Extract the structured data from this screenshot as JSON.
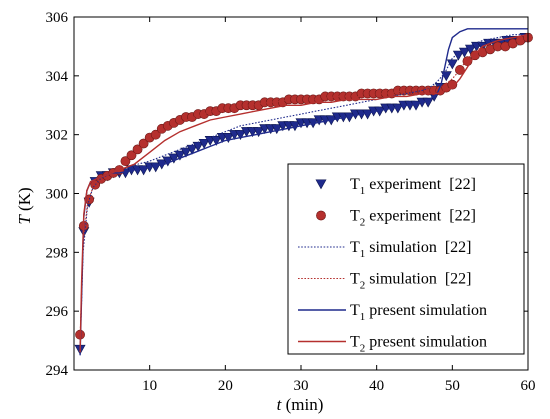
{
  "chart_data": {
    "type": "line",
    "xlabel": {
      "main": "t",
      "unit": " (min)"
    },
    "ylabel": {
      "main": "T",
      "unit": " (K)"
    },
    "xlim": [
      0,
      60
    ],
    "ylim": [
      294,
      306
    ],
    "xticks": [
      "10",
      "20",
      "30",
      "40",
      "50",
      "60"
    ],
    "yticks": [
      "294",
      "296",
      "298",
      "300",
      "302",
      "304",
      "306"
    ],
    "legend_position": "bottom-right",
    "series": [
      {
        "name": "experiment",
        "sub": "1",
        "ref": "[22]",
        "kind": "marker-triangle",
        "color": "#1f2a8c",
        "x": [
          0.8,
          1.3,
          2.0,
          2.8,
          3.6,
          4.4,
          5.2,
          6.0,
          6.8,
          7.6,
          8.4,
          9.2,
          10.0,
          10.8,
          11.6,
          12.4,
          13.2,
          14.0,
          14.8,
          15.6,
          16.4,
          17.2,
          18.0,
          18.8,
          19.6,
          20.4,
          21.2,
          22.0,
          22.8,
          23.6,
          24.4,
          25.2,
          26.0,
          26.8,
          27.6,
          28.4,
          29.2,
          30.0,
          30.8,
          31.6,
          32.4,
          33.2,
          34.0,
          34.8,
          35.6,
          36.4,
          37.2,
          38.0,
          38.8,
          39.6,
          40.4,
          41.2,
          42.0,
          42.8,
          43.6,
          44.4,
          45.2,
          46.0,
          46.8,
          47.6,
          48.4,
          49.2,
          50.0,
          50.8,
          51.6,
          52.4,
          53.2,
          54.0,
          54.8,
          55.6,
          56.4,
          57.2,
          58.0,
          58.8,
          59.6
        ],
        "y": [
          294.7,
          298.7,
          299.7,
          300.4,
          300.6,
          300.6,
          300.7,
          300.7,
          300.7,
          300.8,
          300.8,
          300.8,
          300.9,
          300.9,
          301.0,
          301.1,
          301.2,
          301.3,
          301.4,
          301.5,
          301.6,
          301.7,
          301.8,
          301.8,
          301.9,
          301.9,
          302.0,
          302.0,
          302.1,
          302.1,
          302.1,
          302.2,
          302.2,
          302.2,
          302.3,
          302.3,
          302.3,
          302.4,
          302.4,
          302.4,
          302.5,
          302.5,
          302.5,
          302.6,
          302.6,
          302.6,
          302.7,
          302.7,
          302.7,
          302.8,
          302.8,
          302.9,
          302.9,
          302.9,
          303.0,
          303.0,
          303.0,
          303.1,
          303.1,
          303.3,
          303.6,
          304.0,
          304.4,
          304.7,
          304.8,
          304.9,
          305.0,
          305.0,
          305.1,
          305.1,
          305.1,
          305.2,
          305.2,
          305.2,
          305.3
        ]
      },
      {
        "name": "experiment",
        "sub": "2",
        "ref": "[22]",
        "kind": "marker-circle",
        "color": "#b5302e",
        "x": [
          0.8,
          1.3,
          2.0,
          2.8,
          3.6,
          4.4,
          5.2,
          6.0,
          6.8,
          7.6,
          8.4,
          9.2,
          10.0,
          10.8,
          11.6,
          12.4,
          13.2,
          14.0,
          14.8,
          15.6,
          16.4,
          17.2,
          18.0,
          18.8,
          19.6,
          20.4,
          21.2,
          22.0,
          22.8,
          23.6,
          24.4,
          25.2,
          26.0,
          26.8,
          27.6,
          28.4,
          29.2,
          30.0,
          30.8,
          31.6,
          32.4,
          33.2,
          34.0,
          34.8,
          35.6,
          36.4,
          37.2,
          38.0,
          38.8,
          39.6,
          40.4,
          41.2,
          42.0,
          42.8,
          43.6,
          44.4,
          45.2,
          46.0,
          46.8,
          47.6,
          48.4,
          49.2,
          50.0,
          51.0,
          52.0,
          53.0,
          54.0,
          55.0,
          56.0,
          57.0,
          58.0,
          59.0,
          60.0
        ],
        "y": [
          295.2,
          298.9,
          299.8,
          300.3,
          300.5,
          300.6,
          300.7,
          300.8,
          301.1,
          301.3,
          301.5,
          301.7,
          301.9,
          302.0,
          302.2,
          302.3,
          302.4,
          302.5,
          302.6,
          302.6,
          302.7,
          302.7,
          302.8,
          302.8,
          302.9,
          302.9,
          302.9,
          303.0,
          303.0,
          303.0,
          303.0,
          303.1,
          303.1,
          303.1,
          303.1,
          303.2,
          303.2,
          303.2,
          303.2,
          303.2,
          303.2,
          303.3,
          303.3,
          303.3,
          303.3,
          303.3,
          303.3,
          303.4,
          303.4,
          303.4,
          303.4,
          303.4,
          303.4,
          303.5,
          303.5,
          303.5,
          303.5,
          303.5,
          303.5,
          303.5,
          303.5,
          303.6,
          303.7,
          304.2,
          304.5,
          304.7,
          304.8,
          304.9,
          305.0,
          305.0,
          305.1,
          305.2,
          305.3
        ]
      },
      {
        "name": "simulation",
        "sub": "1",
        "ref": "[22]",
        "kind": "line-dotted",
        "color": "#1f2a8c",
        "x": [
          0.8,
          1.2,
          1.8,
          2.5,
          3.5,
          5,
          7,
          10,
          12,
          14,
          16,
          18,
          20,
          22,
          24,
          26,
          28,
          30,
          32,
          34,
          36,
          38,
          40,
          42,
          44,
          46,
          47,
          48,
          49,
          50,
          52,
          54,
          56,
          58,
          60
        ],
        "y": [
          294.7,
          298.0,
          299.6,
          300.2,
          300.5,
          300.7,
          300.9,
          301.1,
          301.3,
          301.5,
          301.7,
          301.9,
          302.1,
          302.3,
          302.4,
          302.5,
          302.6,
          302.7,
          302.8,
          302.9,
          303.0,
          303.1,
          303.2,
          303.3,
          303.4,
          303.5,
          303.6,
          303.8,
          304.1,
          304.6,
          305.0,
          305.2,
          305.3,
          305.4,
          305.4
        ]
      },
      {
        "name": "simulation",
        "sub": "2",
        "ref": "[22]",
        "kind": "line-dotted",
        "color": "#b5302e",
        "x": [
          0.8,
          1.2,
          1.8,
          2.5,
          3.5,
          5,
          7,
          9,
          11,
          13,
          15,
          17,
          20,
          23,
          26,
          29,
          32,
          35,
          38,
          41,
          44,
          47,
          48,
          49,
          50,
          51,
          52,
          54,
          56,
          58,
          60
        ],
        "y": [
          295.1,
          298.3,
          299.7,
          300.2,
          300.5,
          300.7,
          301.1,
          301.6,
          302.0,
          302.3,
          302.5,
          302.7,
          302.9,
          303.0,
          303.1,
          303.2,
          303.2,
          303.3,
          303.3,
          303.4,
          303.5,
          303.6,
          303.6,
          303.7,
          303.9,
          304.2,
          304.6,
          305.0,
          305.2,
          305.3,
          305.4
        ]
      },
      {
        "name": "present simulation",
        "sub": "1",
        "ref": "",
        "kind": "line-solid",
        "color": "#1f2a8c",
        "x": [
          0.8,
          1.0,
          1.3,
          1.7,
          2.2,
          3,
          4,
          5,
          6,
          8,
          10,
          12,
          14,
          16,
          18,
          20,
          22,
          24,
          26,
          28,
          30,
          32,
          34,
          36,
          38,
          40,
          42,
          44,
          46,
          47,
          48,
          48.5,
          49,
          49.5,
          50,
          51,
          52,
          54,
          56,
          58,
          60
        ],
        "y": [
          294.5,
          296.5,
          299.2,
          300.1,
          300.4,
          300.5,
          300.6,
          300.7,
          300.7,
          300.8,
          300.9,
          301.0,
          301.2,
          301.4,
          301.6,
          301.8,
          301.9,
          302.0,
          302.1,
          302.2,
          302.3,
          302.4,
          302.5,
          302.6,
          302.7,
          302.8,
          302.9,
          303.0,
          303.1,
          303.2,
          303.4,
          303.7,
          304.3,
          304.9,
          305.3,
          305.5,
          305.6,
          305.6,
          305.6,
          305.6,
          305.6
        ]
      },
      {
        "name": "present simulation",
        "sub": "2",
        "ref": "",
        "kind": "line-solid",
        "color": "#b5302e",
        "x": [
          0.8,
          1.0,
          1.3,
          1.7,
          2.2,
          3,
          4,
          5,
          6,
          8,
          10,
          12,
          14,
          16,
          18,
          20,
          22,
          24,
          26,
          28,
          30,
          32,
          34,
          36,
          38,
          40,
          42,
          44,
          46,
          48,
          49,
          50,
          51,
          52,
          53,
          54,
          56,
          58,
          60
        ],
        "y": [
          294.6,
          297.0,
          299.3,
          300.1,
          300.4,
          300.5,
          300.6,
          300.7,
          300.8,
          301.0,
          301.4,
          301.8,
          302.1,
          302.3,
          302.5,
          302.6,
          302.7,
          302.8,
          302.9,
          303.0,
          303.0,
          303.1,
          303.1,
          303.2,
          303.2,
          303.2,
          303.3,
          303.3,
          303.4,
          303.4,
          303.5,
          303.6,
          303.9,
          304.3,
          304.7,
          305.0,
          305.2,
          305.3,
          305.4
        ]
      }
    ]
  }
}
